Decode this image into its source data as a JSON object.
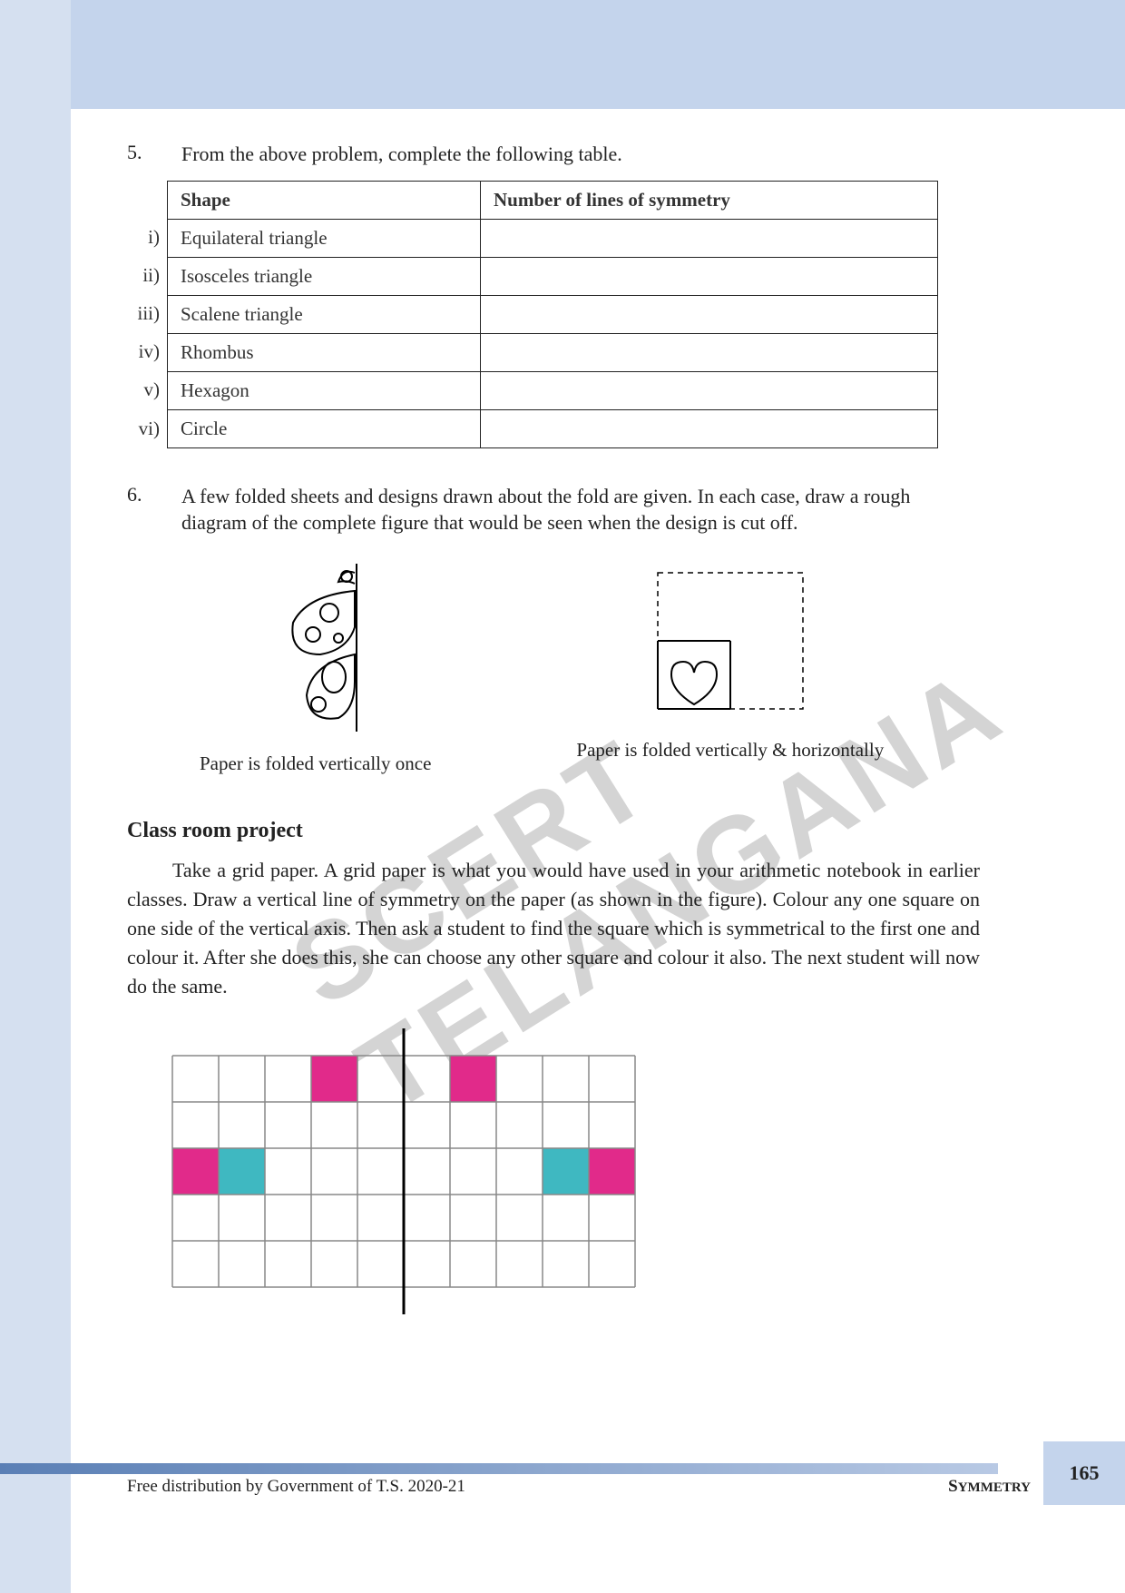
{
  "q5": {
    "number": "5.",
    "text": "From the above problem, complete the following table.",
    "table": {
      "headers": [
        "Shape",
        "Number of lines of symmetry"
      ],
      "rows": [
        {
          "label": "i)",
          "shape": "Equilateral triangle",
          "symmetry": ""
        },
        {
          "label": "ii)",
          "shape": "Isosceles triangle",
          "symmetry": ""
        },
        {
          "label": "iii)",
          "shape": "Scalene triangle",
          "symmetry": ""
        },
        {
          "label": "iv)",
          "shape": "Rhombus",
          "symmetry": ""
        },
        {
          "label": "v)",
          "shape": "Hexagon",
          "symmetry": ""
        },
        {
          "label": "vi)",
          "shape": "Circle",
          "symmetry": ""
        }
      ]
    }
  },
  "q6": {
    "number": "6.",
    "text": "A few folded sheets and designs drawn about the fold are given. In each case, draw a rough diagram of the complete figure that would be seen when the design is cut off.",
    "caption_left": "Paper is folded vertically once",
    "caption_right": "Paper is folded vertically  &  horizontally"
  },
  "project": {
    "heading": "Class room project",
    "text": "Take a grid paper. A grid paper is what you would have used in your arithmetic notebook in earlier classes. Draw a vertical line of symmetry on the paper (as shown in the figure). Colour any one square on one side of the vertical axis. Then ask a student to find the square which is symmetrical to the first one and colour it. After she does this, she can choose any other square and colour it also. The next student will now do the same."
  },
  "grid": {
    "cols": 10,
    "rows": 5,
    "cell_size": 51,
    "border_color": "#888888",
    "axis_color": "#000000",
    "colors": {
      "pink": "#e12a8a",
      "cyan": "#3fb8c1"
    },
    "filled": [
      {
        "row": 0,
        "col": 3,
        "color": "pink"
      },
      {
        "row": 0,
        "col": 6,
        "color": "pink"
      },
      {
        "row": 2,
        "col": 0,
        "color": "pink"
      },
      {
        "row": 2,
        "col": 1,
        "color": "cyan"
      },
      {
        "row": 2,
        "col": 8,
        "color": "cyan"
      },
      {
        "row": 2,
        "col": 9,
        "color": "pink"
      }
    ]
  },
  "watermark": "SCERT TELANGANA",
  "footer": {
    "text": "Free distribution by Government of T.S. 2020-21",
    "chapter": "Symmetry",
    "page": "165"
  },
  "colors": {
    "page_blue_light": "#d5e0f0",
    "page_blue": "#c4d4ec",
    "text": "#333333"
  }
}
